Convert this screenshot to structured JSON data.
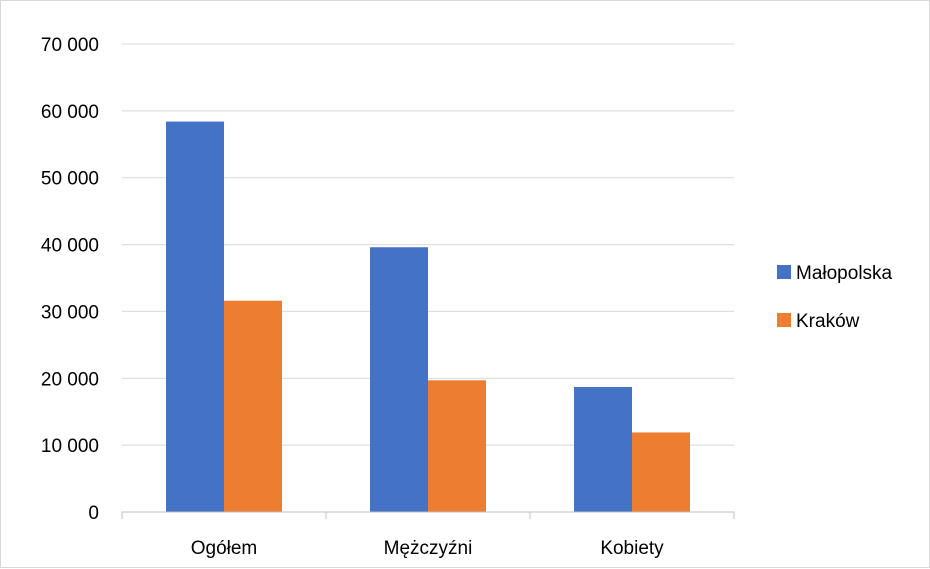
{
  "chart_data": {
    "type": "bar",
    "categories": [
      "Ogółem",
      "Mężczyźni",
      "Kobiety"
    ],
    "series": [
      {
        "name": "Małopolska",
        "color": "#4472C4",
        "values": [
          58400,
          39600,
          18700
        ]
      },
      {
        "name": "Kraków",
        "color": "#ED7D31",
        "values": [
          31600,
          19700,
          11900
        ]
      }
    ],
    "ylim": [
      0,
      70000
    ],
    "yticks": [
      0,
      10000,
      20000,
      30000,
      40000,
      50000,
      60000,
      70000
    ],
    "ytick_labels": [
      "0",
      "10 000",
      "20 000",
      "30 000",
      "40 000",
      "50 000",
      "60 000",
      "70 000"
    ],
    "grid": true,
    "legend_position": "right",
    "title": "",
    "xlabel": "",
    "ylabel": ""
  }
}
